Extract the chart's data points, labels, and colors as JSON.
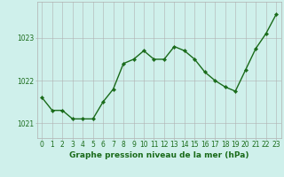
{
  "x": [
    0,
    1,
    2,
    3,
    4,
    5,
    6,
    7,
    8,
    9,
    10,
    11,
    12,
    13,
    14,
    15,
    16,
    17,
    18,
    19,
    20,
    21,
    22,
    23
  ],
  "y": [
    1021.6,
    1021.3,
    1021.3,
    1021.1,
    1021.1,
    1021.1,
    1021.5,
    1021.8,
    1022.4,
    1022.5,
    1022.7,
    1022.5,
    1022.5,
    1022.8,
    1022.7,
    1022.5,
    1022.2,
    1022.0,
    1021.85,
    1021.75,
    1022.25,
    1022.75,
    1023.1,
    1023.55
  ],
  "line_color": "#1a6b1a",
  "marker": "D",
  "marker_size": 2.2,
  "line_width": 1.0,
  "background_color": "#cff0eb",
  "grid_color": "#b0b0b0",
  "xlabel": "Graphe pression niveau de la mer (hPa)",
  "xlabel_fontsize": 6.5,
  "xlabel_color": "#1a6b1a",
  "xlabel_weight": "bold",
  "tick_color": "#1a6b1a",
  "tick_fontsize": 5.5,
  "yticks": [
    1021,
    1022,
    1023
  ],
  "ylim": [
    1020.65,
    1023.85
  ],
  "xlim": [
    -0.5,
    23.5
  ]
}
